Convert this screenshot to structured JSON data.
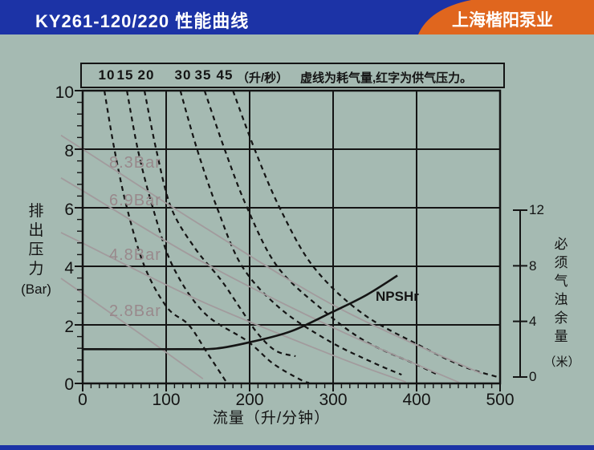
{
  "header": {
    "title": "KY261-120/220 性能曲线",
    "brand": "上海楷阳泵业",
    "blue": "#1c33a6",
    "orange": "#e0661e"
  },
  "legend": {
    "flow_values": [
      "10",
      "15",
      "20",
      "30",
      "35",
      "45"
    ],
    "flow_unit": "（升/秒）",
    "note": "虚线为耗气量,红字为供气压力。"
  },
  "axes": {
    "x": {
      "title": "流量（升/分钟）",
      "tick_labels": [
        "0",
        "100",
        "200",
        "300",
        "400",
        "500"
      ]
    },
    "y_left": {
      "title_vertical": "排出压力",
      "title_unit": "(Bar)",
      "tick_labels": [
        "10",
        "8",
        "6",
        "4",
        "2",
        "0"
      ]
    },
    "y_right": {
      "title_vertical": "必须气浊余量",
      "title_unit": "（米）",
      "tick_labels": [
        "12",
        "8",
        "4",
        "0"
      ]
    }
  },
  "curve_labels": {
    "supply": [
      "8.3Bar",
      "6.9Bar",
      "4.8Bar",
      "2.8Bar"
    ],
    "npshr": "NPSHr"
  },
  "colors": {
    "background": "#a5bab2",
    "line_black": "#141414",
    "line_gray": "#a29b9d",
    "label_gray": "#99898c"
  },
  "chart_data": {
    "type": "line",
    "title": "KY261-120/220 性能曲线",
    "xlabel": "流量（升/分钟）",
    "ylabel_left": "排出压力（Bar）",
    "ylabel_right": "必须气浊余量（米）",
    "x_range": [
      0,
      500
    ],
    "x_grid_step": 100,
    "x_minor_step": 10,
    "y_left_range": [
      0,
      10
    ],
    "y_left_grid_step": 2,
    "y_left_minor_step": 0.4,
    "y_right_range": [
      0,
      12
    ],
    "y_right_tick_step": 4,
    "grid": "on",
    "series": [
      {
        "id": "air-10",
        "name": "耗气量 10 升/秒",
        "style": "dashed",
        "axis": "left",
        "points": [
          [
            26,
            10
          ],
          [
            38,
            8
          ],
          [
            53,
            6
          ],
          [
            74,
            4
          ],
          [
            101,
            2.6
          ],
          [
            127,
            2.0
          ],
          [
            149,
            1.05
          ],
          [
            172,
            0.05
          ]
        ]
      },
      {
        "id": "air-15",
        "name": "耗气量 15 升/秒",
        "style": "dashed",
        "axis": "left",
        "points": [
          [
            53,
            10
          ],
          [
            66,
            8
          ],
          [
            84,
            6
          ],
          [
            108,
            4
          ],
          [
            146,
            2.4
          ],
          [
            197,
            1.45
          ],
          [
            228,
            0.68
          ],
          [
            260,
            0.14
          ],
          [
            271,
            0.02
          ]
        ]
      },
      {
        "id": "air-20",
        "name": "耗气量 20 升/秒",
        "style": "dashed",
        "axis": "left",
        "points": [
          [
            74,
            10
          ],
          [
            88,
            8
          ],
          [
            106,
            6
          ],
          [
            135,
            4.6
          ],
          [
            165,
            3.56
          ],
          [
            188,
            2.6
          ],
          [
            209,
            1.73
          ],
          [
            231,
            1.12
          ],
          [
            255,
            0.93
          ]
        ]
      },
      {
        "id": "air-30",
        "name": "耗气量 30 升/秒",
        "style": "dashed",
        "axis": "left",
        "points": [
          [
            117,
            10
          ],
          [
            137,
            8
          ],
          [
            161,
            6
          ],
          [
            191,
            4
          ],
          [
            237,
            2.55
          ],
          [
            295,
            1.45
          ],
          [
            348,
            0.71
          ],
          [
            382,
            0.3
          ]
        ]
      },
      {
        "id": "air-35",
        "name": "耗气量 35 升/秒",
        "style": "dashed",
        "axis": "left",
        "points": [
          [
            146,
            10
          ],
          [
            170,
            8
          ],
          [
            197,
            6
          ],
          [
            233,
            4
          ],
          [
            286,
            2.55
          ],
          [
            338,
            1.45
          ],
          [
            401,
            0.63
          ],
          [
            425,
            0.3
          ]
        ]
      },
      {
        "id": "air-45",
        "name": "耗气量 45 升/秒",
        "style": "dashed",
        "axis": "left",
        "points": [
          [
            180,
            10
          ],
          [
            206,
            8
          ],
          [
            236,
            6
          ],
          [
            276,
            4
          ],
          [
            334,
            2.41
          ],
          [
            402,
            1.32
          ],
          [
            456,
            0.58
          ],
          [
            497,
            0.22
          ]
        ]
      },
      {
        "id": "supply-8.3",
        "name": "供气压力 8.3Bar",
        "style": "supply",
        "axis": "left",
        "points": [
          [
            0,
            8.0
          ],
          [
            141,
            5.42
          ],
          [
            305,
            2.6
          ],
          [
            478,
            0.33
          ]
        ]
      },
      {
        "id": "supply-6.9",
        "name": "供气压力 6.9Bar",
        "style": "supply",
        "axis": "left",
        "points": [
          [
            0,
            6.58
          ],
          [
            141,
            4.19
          ],
          [
            305,
            1.84
          ],
          [
            451,
            0.03
          ]
        ]
      },
      {
        "id": "supply-4.8",
        "name": "供气压力 4.8Bar",
        "style": "supply",
        "axis": "left",
        "points": [
          [
            0,
            4.79
          ],
          [
            141,
            2.82
          ],
          [
            305,
            0.9
          ],
          [
            387,
            0.05
          ]
        ]
      },
      {
        "id": "supply-2.8",
        "name": "供气压力 2.8Bar",
        "style": "supply",
        "axis": "left",
        "points": [
          [
            0,
            3.07
          ],
          [
            74,
            1.59
          ],
          [
            144,
            0.16
          ]
        ]
      },
      {
        "id": "npshr",
        "name": "NPSHr",
        "style": "solid",
        "axis": "right",
        "points": [
          [
            0,
            2.0
          ],
          [
            120,
            2.0
          ],
          [
            160,
            2.05
          ],
          [
            200,
            2.5
          ],
          [
            250,
            3.3
          ],
          [
            300,
            4.7
          ],
          [
            340,
            5.9
          ],
          [
            377,
            7.3
          ]
        ]
      }
    ]
  }
}
